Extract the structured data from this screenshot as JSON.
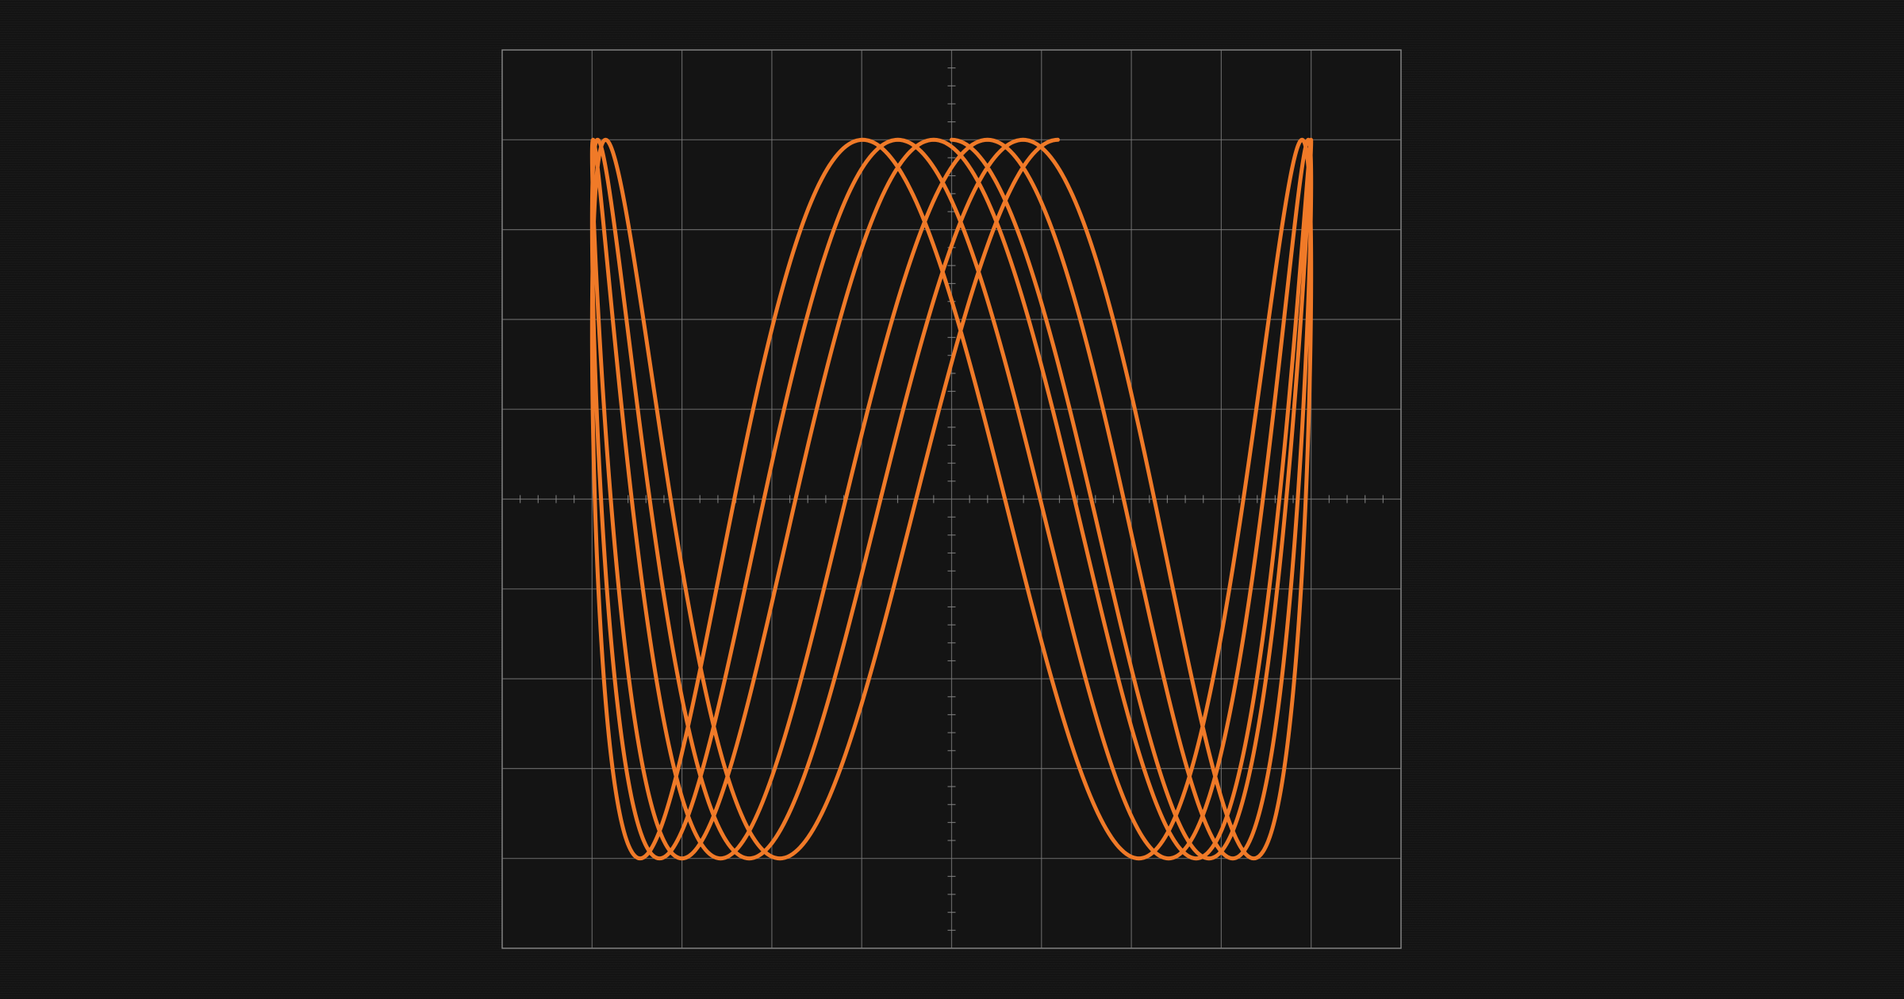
{
  "scope": {
    "trace_color": "#f07a28",
    "background_color": "#141414",
    "grid_color": "#7c7c7c",
    "grid": true,
    "graticule_divisions": {
      "horizontal": 10,
      "vertical": 10
    },
    "minor_ticks_per_division": 5
  },
  "chart_data": {
    "type": "lissajous",
    "title": "",
    "xlabel": "",
    "ylabel": "",
    "xlim": [
      -5,
      5
    ],
    "ylim": [
      -5,
      5
    ],
    "grid": true,
    "series": [
      {
        "x_amplitude": 4,
        "y_amplitude": 4,
        "frequency_x": 1,
        "frequency_y": 4,
        "phase_step": 0.1,
        "cycles": 3,
        "start_phase": 0
      }
    ]
  }
}
